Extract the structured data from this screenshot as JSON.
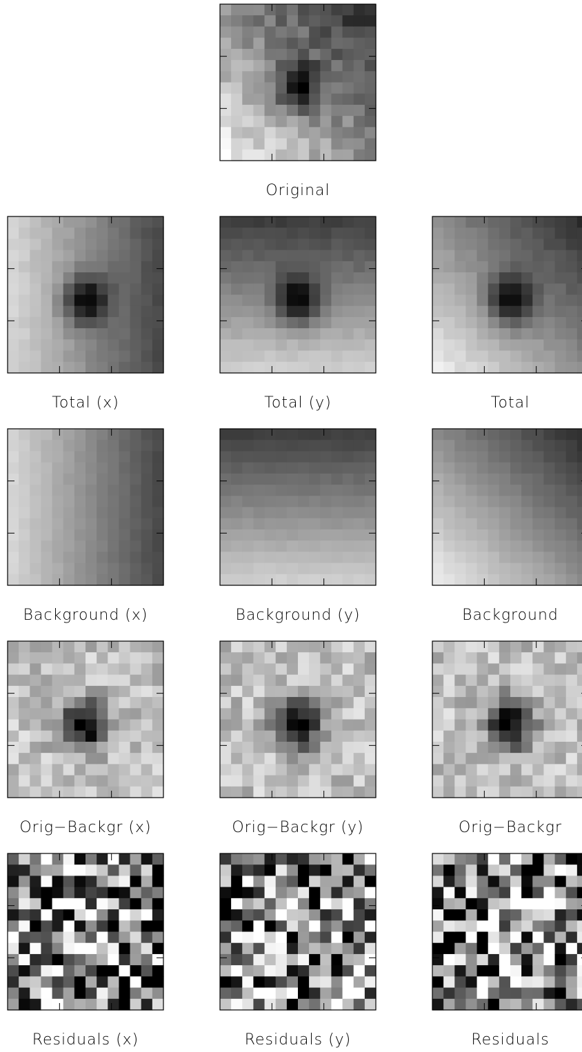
{
  "panels": [
    {
      "label": "Original"
    },
    {
      "label": "Total (x)"
    },
    {
      "label": "Total (y)"
    },
    {
      "label": "Total"
    },
    {
      "label": "Background (x)"
    },
    {
      "label": "Background (y)"
    },
    {
      "label": "Background"
    },
    {
      "label": "Orig−Backgr (x)"
    },
    {
      "label": "Orig−Backgr (y)"
    },
    {
      "label": "Orig−Backgr"
    },
    {
      "label": "Residuals (x)"
    },
    {
      "label": "Residuals (y)"
    },
    {
      "label": "Residuals"
    }
  ]
}
